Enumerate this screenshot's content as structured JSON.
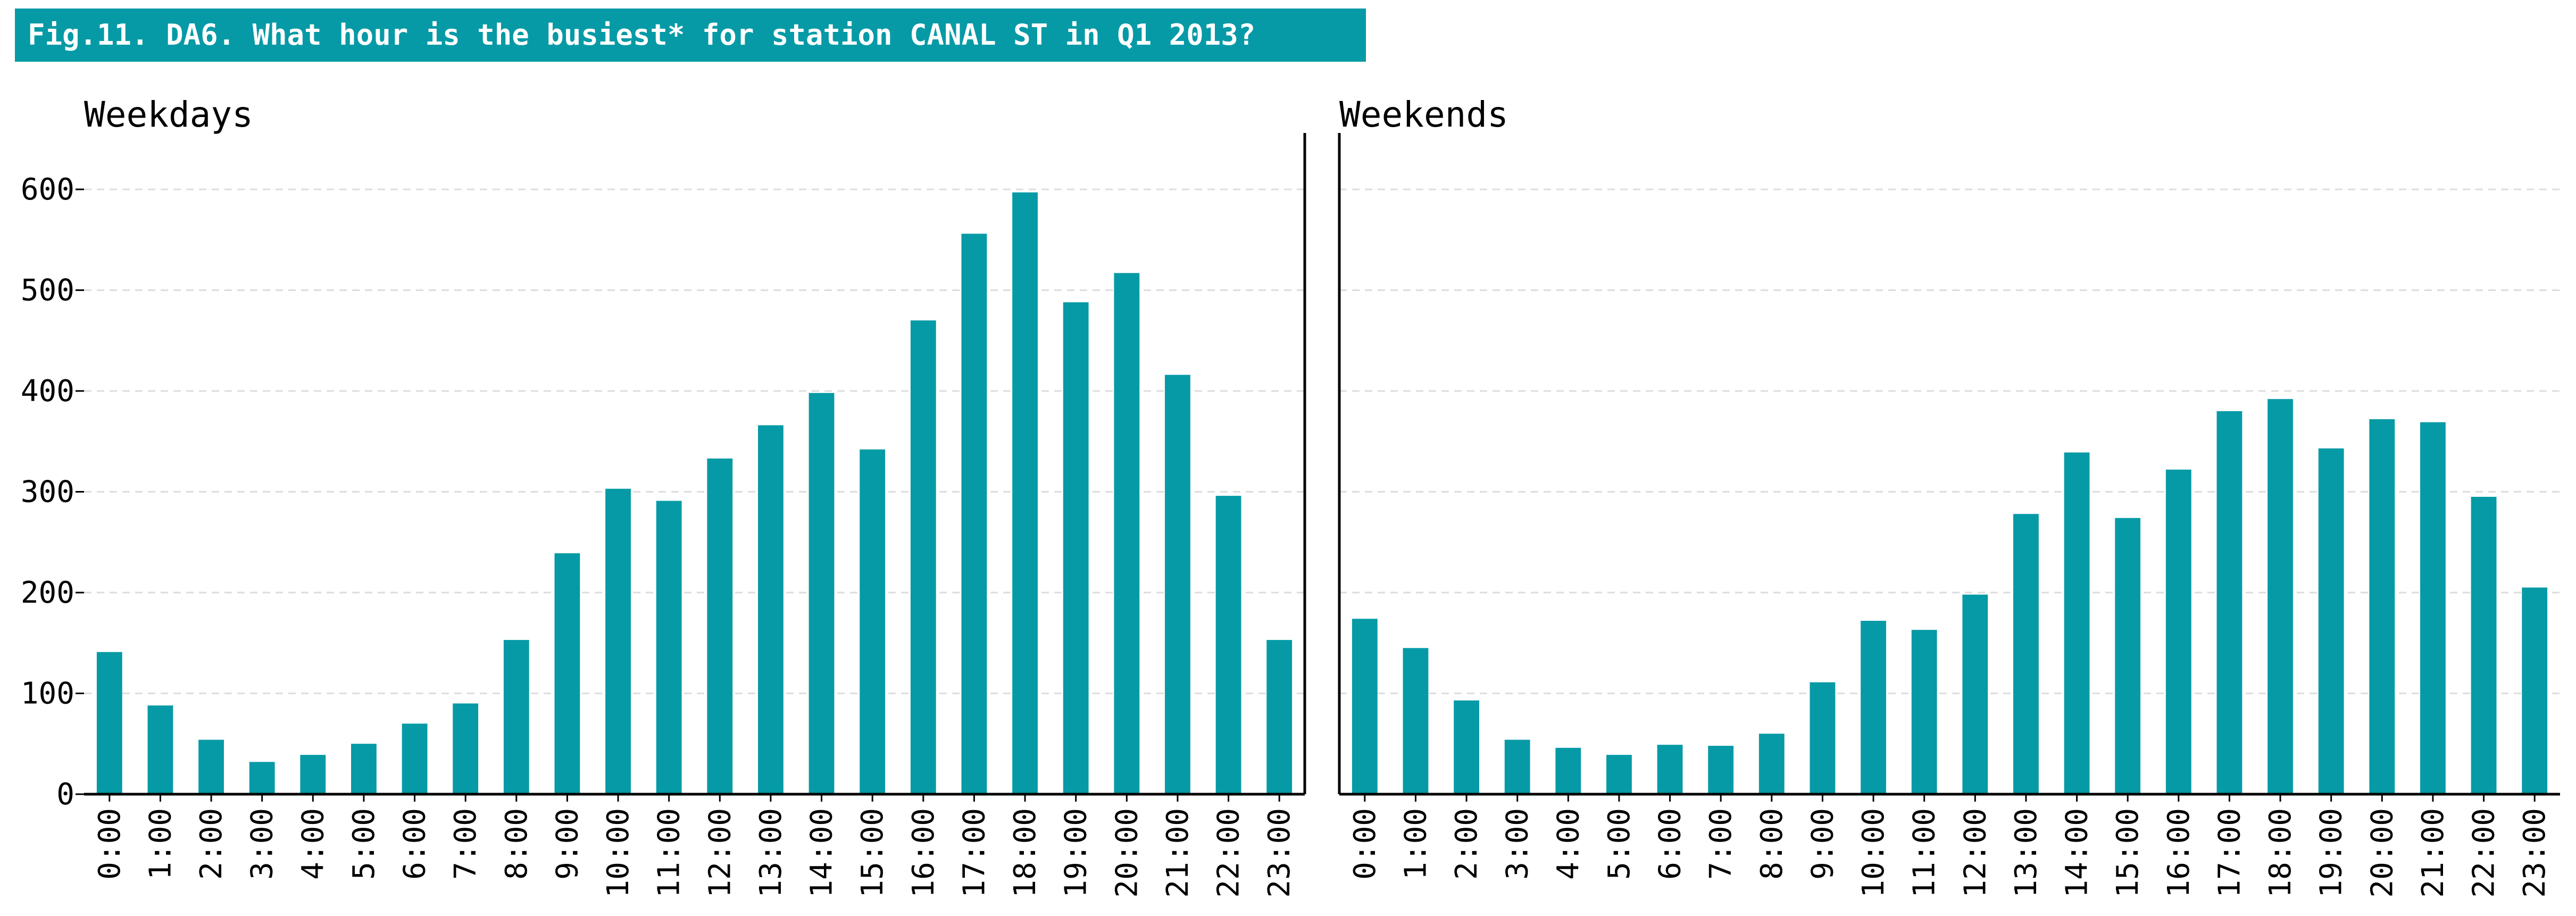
{
  "title": "Fig.11. DA6. What hour is the busiest* for station CANAL ST in Q1 2013?",
  "colors": {
    "bar": "#069aa6",
    "grid": "#dddddd",
    "axis": "#000000",
    "title_bg": "#069aa6"
  },
  "chart_data": [
    {
      "type": "bar",
      "panel_title": "Weekdays",
      "ylim": [
        0,
        650
      ],
      "yticks": [
        0,
        100,
        200,
        300,
        400,
        500,
        600
      ],
      "grid": true,
      "categories": [
        "0:00",
        "1:00",
        "2:00",
        "3:00",
        "4:00",
        "5:00",
        "6:00",
        "7:00",
        "8:00",
        "9:00",
        "10:00",
        "11:00",
        "12:00",
        "13:00",
        "14:00",
        "15:00",
        "16:00",
        "17:00",
        "18:00",
        "19:00",
        "20:00",
        "21:00",
        "22:00",
        "23:00"
      ],
      "values": [
        141,
        88,
        54,
        32,
        39,
        50,
        70,
        90,
        153,
        239,
        303,
        291,
        333,
        366,
        398,
        342,
        470,
        556,
        597,
        488,
        517,
        416,
        296,
        153
      ]
    },
    {
      "type": "bar",
      "panel_title": "Weekends",
      "ylim": [
        0,
        650
      ],
      "yticks": [
        0,
        100,
        200,
        300,
        400,
        500,
        600
      ],
      "grid": true,
      "categories": [
        "0:00",
        "1:00",
        "2:00",
        "3:00",
        "4:00",
        "5:00",
        "6:00",
        "7:00",
        "8:00",
        "9:00",
        "10:00",
        "11:00",
        "12:00",
        "13:00",
        "14:00",
        "15:00",
        "16:00",
        "17:00",
        "18:00",
        "19:00",
        "20:00",
        "21:00",
        "22:00",
        "23:00"
      ],
      "values": [
        174,
        145,
        93,
        54,
        46,
        39,
        49,
        48,
        60,
        111,
        172,
        163,
        198,
        278,
        339,
        274,
        322,
        380,
        392,
        343,
        372,
        369,
        295,
        205
      ]
    }
  ]
}
